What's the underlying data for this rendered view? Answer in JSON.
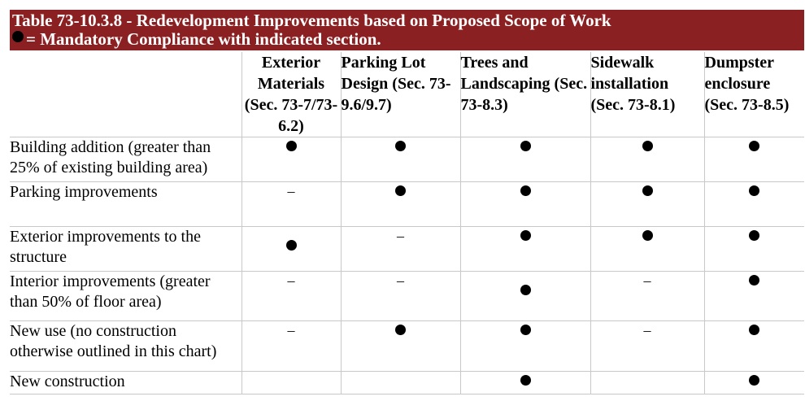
{
  "table": {
    "title": "Table 73-10.3.8 - Redevelopment Improvements based on Proposed Scope of Work",
    "legend_text": "= Mandatory Compliance with indicated section.",
    "colors": {
      "banner": "#8b2022",
      "banner_text": "#ffffff",
      "grid_line": "#c8c8c8"
    },
    "columns": [
      {
        "label": "Exterior Materials (Sec. 73-7/73-6.2)"
      },
      {
        "label": "Parking Lot Design (Sec. 73-9.6/9.7)"
      },
      {
        "label": "Trees and Landscaping (Sec. 73-8.3)"
      },
      {
        "label": "Sidewalk installation (Sec. 73-8.1)"
      },
      {
        "label": "Dumpster enclosure (Sec. 73-8.5)"
      }
    ],
    "rows": [
      {
        "label": "Building addition (greater than 25% of existing building area)",
        "cells": [
          "●",
          "●",
          "●",
          "●",
          "●"
        ]
      },
      {
        "label": "Parking improvements",
        "cells": [
          "–",
          "●",
          "●",
          "●",
          "●"
        ]
      },
      {
        "label": "Exterior improvements to the structure",
        "cells": [
          "●",
          "–",
          "●",
          "●",
          "●"
        ]
      },
      {
        "label": "Interior improvements (greater than 50% of floor area)",
        "cells": [
          "–",
          "–",
          "●",
          "–",
          "●"
        ]
      },
      {
        "label": "New use (no construction otherwise outlined in this chart)",
        "cells": [
          "–",
          "●",
          "●",
          "–",
          "●"
        ]
      },
      {
        "label": "New construction",
        "cells": [
          "",
          "",
          "●",
          "",
          "●"
        ]
      }
    ]
  }
}
